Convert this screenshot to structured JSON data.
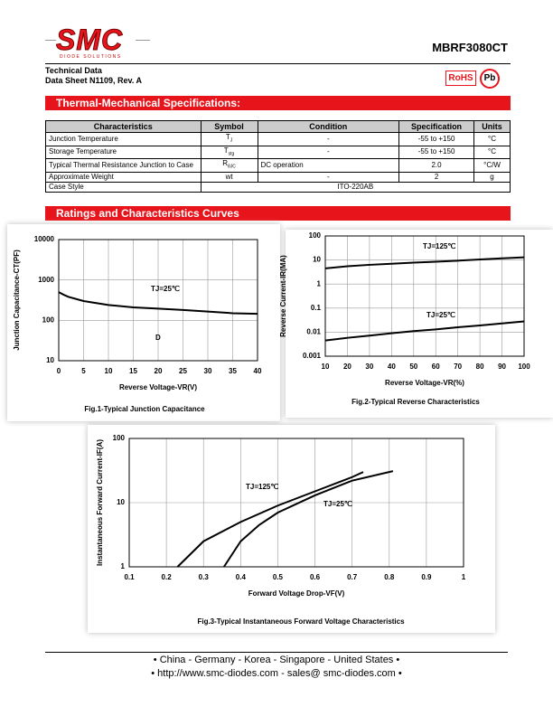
{
  "header": {
    "logo": "SMC",
    "logo_sub": "DIODE SOLUTIONS",
    "part": "MBRF3080CT",
    "doc_lines": [
      "Technical Data",
      "Data Sheet N1109, Rev. A"
    ],
    "badges": [
      "RoHS",
      "Pb"
    ]
  },
  "sections": [
    "Thermal-Mechanical Specifications:",
    "Ratings and Characteristics Curves"
  ],
  "table": {
    "columns": [
      "Characteristics",
      "Symbol",
      "Condition",
      "Specification",
      "Units"
    ],
    "rows": [
      {
        "name": "Junction Temperature",
        "symbol": {
          "base": "T",
          "sub": "J"
        },
        "condition": "-",
        "spec": "-55 to +150",
        "unit": "°C"
      },
      {
        "name": "Storage Temperature",
        "symbol": {
          "base": "T",
          "sub": "stg"
        },
        "condition": "-",
        "spec": "-55 to +150",
        "unit": "°C"
      },
      {
        "name": "Typical Thermal Resistance Junction to Case",
        "symbol": {
          "base": "R",
          "sub": "θJC"
        },
        "condition": "DC operation",
        "spec": "2.0",
        "unit": "°C/W"
      },
      {
        "name": "Approximate Weight",
        "symbol": {
          "base": "wt",
          "sub": ""
        },
        "condition": "-",
        "spec": "2",
        "unit": "g"
      }
    ],
    "case_row": [
      "Case Style",
      "ITO-220AB"
    ]
  },
  "chart_data": [
    {
      "type": "line",
      "title": "Fig.1-Typical Junction Capacitance",
      "x_label": "Reverse Voltage-VR(V)",
      "y_label": "Junction Capacitance-CT(PF)",
      "x": [
        0,
        1,
        2,
        5,
        10,
        15,
        20,
        25,
        30,
        35,
        40
      ],
      "values": [
        500,
        430,
        380,
        300,
        240,
        210,
        195,
        180,
        165,
        150,
        145
      ],
      "color": "#000000",
      "xlim": [
        0,
        40
      ],
      "xticks": [
        0,
        5,
        10,
        15,
        20,
        25,
        30,
        35,
        40
      ],
      "ylim": [
        10,
        10000
      ],
      "yticks": [
        10,
        100,
        1000,
        10000
      ],
      "log_y": true,
      "grid": true,
      "annotations": [
        "TJ=25℃",
        "D"
      ]
    },
    {
      "type": "line",
      "title": "Fig.2-Typical Reverse Characteristics",
      "x_label": "Reverse Voltage-VR(%)",
      "y_label": "Reverse Current-IR(MA)",
      "x": [
        10,
        20,
        30,
        40,
        50,
        60,
        70,
        80,
        90,
        100
      ],
      "series": [
        {
          "name": "TJ=125℃",
          "color": "#000000",
          "values": [
            4.5,
            5.5,
            6.3,
            7,
            7.8,
            8.5,
            9.4,
            10.5,
            11.7,
            13
          ]
        },
        {
          "name": "TJ=25℃",
          "color": "#000000",
          "values": [
            0.0045,
            0.0058,
            0.0072,
            0.009,
            0.011,
            0.013,
            0.016,
            0.019,
            0.023,
            0.028
          ]
        }
      ],
      "xlim": [
        10,
        100
      ],
      "xticks": [
        10,
        20,
        30,
        40,
        50,
        60,
        70,
        80,
        90,
        100
      ],
      "ylim": [
        0.001,
        100
      ],
      "yticks": [
        0.001,
        0.01,
        0.1,
        1,
        10,
        100
      ],
      "log_y": true,
      "grid": true
    },
    {
      "type": "line",
      "title": "Fig.3-Typical Instantaneous Forward Voltage Characteristics",
      "x_label": "Forward Voltage Drop-VF(V)",
      "y_label": "Instantaneous Forward Current-IF(A)",
      "series": [
        {
          "name": "TJ=125℃",
          "color": "#000000",
          "x": [
            0.23,
            0.3,
            0.4,
            0.5,
            0.6,
            0.7,
            0.73
          ],
          "values": [
            1,
            2.5,
            5,
            9,
            15,
            25,
            30
          ]
        },
        {
          "name": "TJ=25℃",
          "color": "#000000",
          "x": [
            0.355,
            0.4,
            0.45,
            0.5,
            0.6,
            0.7,
            0.81
          ],
          "values": [
            1,
            2.5,
            4.5,
            7,
            13,
            22,
            31
          ]
        }
      ],
      "xlim": [
        0.1,
        1
      ],
      "xticks": [
        0.1,
        0.2,
        0.3,
        0.4,
        0.5,
        0.6,
        0.7,
        0.8,
        0.9,
        1
      ],
      "ylim": [
        1,
        100
      ],
      "yticks": [
        1,
        10,
        100
      ],
      "log_y": true,
      "grid": true
    }
  ],
  "footer": [
    "• China  -  Germany  -  Korea  -  Singapore  -  United States •",
    "• http://www.smc-diodes.com  -  sales@ smc-diodes.com •"
  ]
}
